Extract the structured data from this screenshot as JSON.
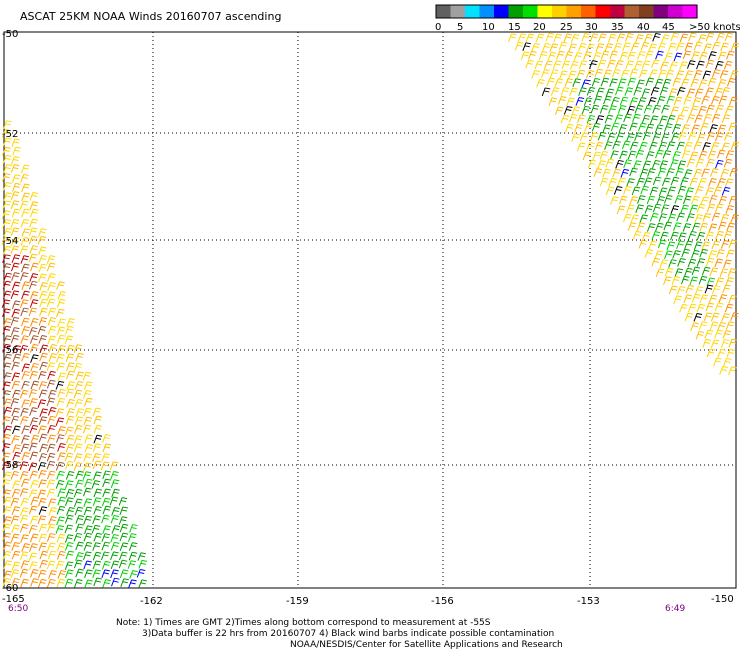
{
  "title": "ASCAT 25KM NOAA Winds 20160707 ascending",
  "colorbar": {
    "ticks": [
      "0",
      "5",
      "10",
      "15",
      "20",
      "25",
      "30",
      "35",
      "40",
      "45",
      ">50 knots"
    ],
    "colors": [
      "#606060",
      "#a0a0a0",
      "#00e0ff",
      "#0090ff",
      "#0000ff",
      "#00a000",
      "#00e000",
      "#ffff00",
      "#ffd000",
      "#ffa000",
      "#ff6000",
      "#ff0000",
      "#c00040",
      "#b06030",
      "#804020",
      "#800080",
      "#d000d0",
      "#ff00ff"
    ]
  },
  "axes": {
    "lat_labels": [
      "-50",
      "-52",
      "-54",
      "-56",
      "-58",
      "-60"
    ],
    "lon_labels": [
      "-165",
      "-162",
      "-159",
      "-156",
      "-153",
      "-150"
    ]
  },
  "times": {
    "left": "6:50",
    "right": "6:49"
  },
  "notes": {
    "line1": "Note: 1) Times are GMT 2)Times along bottom correspond to measurement at -55S",
    "line2": "3)Data buffer is 22 hrs from 20160707 4) Black wind barbs indicate possible contamination",
    "line3": "NOAA/NESDIS/Center for Satellite Applications and Research"
  },
  "wind_colors": {
    "calm_blue": "#0000ff",
    "moderate_green": "#00a000",
    "light_green": "#00d000",
    "yellow": "#ffd700",
    "gold": "#ffc000",
    "orange": "#ff8c00",
    "brown": "#a0522d",
    "red": "#c00000",
    "contaminated_black": "#000000"
  }
}
